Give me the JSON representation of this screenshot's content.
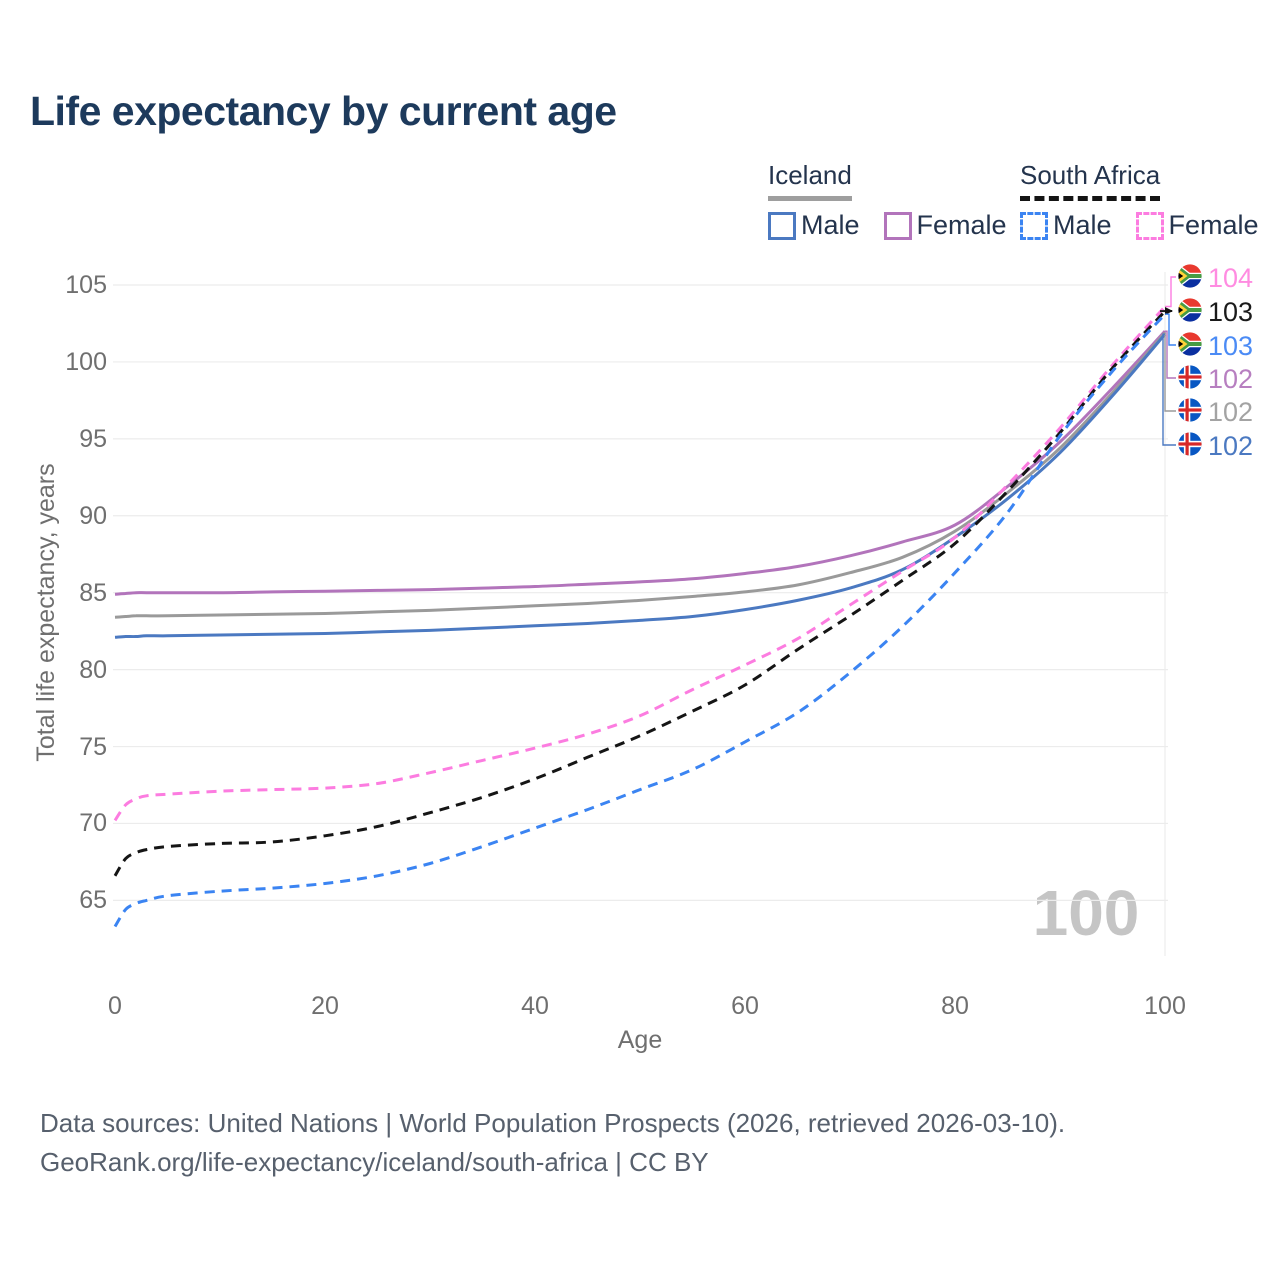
{
  "title": "Life expectancy by current age",
  "legend": {
    "groups": [
      {
        "name": "Iceland",
        "line_style": "solid",
        "underline_color": "#9e9e9e",
        "items": [
          {
            "label": "Male",
            "color": "#4b79c1",
            "dashed": false
          },
          {
            "label": "Female",
            "color": "#b274bb",
            "dashed": false
          }
        ]
      },
      {
        "name": "South Africa",
        "line_style": "dashed",
        "underline_color": "#141414",
        "items": [
          {
            "label": "Male",
            "color": "#3b84f2",
            "dashed": true
          },
          {
            "label": "Female",
            "color": "#fc7ce0",
            "dashed": true
          }
        ]
      }
    ]
  },
  "watermark": "100",
  "end_labels": [
    {
      "value": "104",
      "flag": "za",
      "color": "#ff8ce1",
      "series": "South Africa Female"
    },
    {
      "value": "103",
      "flag": "za",
      "color": "#1a1a1a",
      "series": "South Africa Both sexes"
    },
    {
      "value": "103",
      "flag": "za",
      "color": "#4b8bf5",
      "series": "South Africa Male"
    },
    {
      "value": "102",
      "flag": "is",
      "color": "#b77fc0",
      "series": "Iceland Female"
    },
    {
      "value": "102",
      "flag": "is",
      "color": "#a3a3a3",
      "series": "Iceland Both sexes"
    },
    {
      "value": "102",
      "flag": "is",
      "color": "#4b79c1",
      "series": "Iceland Male"
    }
  ],
  "footer": {
    "line1": "Data sources: United Nations | World Population Prospects (2026, retrieved 2026-03-10).",
    "line2": "GeoRank.org/life-expectancy/iceland/south-africa | CC BY"
  },
  "chart_data": {
    "type": "line",
    "title": "Life expectancy by current age",
    "xlabel": "Age",
    "ylabel": "Total life expectancy, years",
    "xlim": [
      0,
      100
    ],
    "ylim": [
      62,
      106
    ],
    "x_ticks": [
      0,
      20,
      40,
      60,
      80,
      100
    ],
    "y_ticks": [
      65,
      70,
      75,
      80,
      85,
      90,
      95,
      100,
      105
    ],
    "grid": "horizontal",
    "legend_position": "top-right",
    "x": [
      0,
      1,
      2,
      3,
      5,
      10,
      15,
      20,
      25,
      30,
      35,
      40,
      45,
      50,
      55,
      60,
      65,
      70,
      75,
      80,
      85,
      90,
      95,
      100
    ],
    "series": [
      {
        "name": "Iceland Female",
        "country": "Iceland",
        "sex": "Female",
        "color": "#b274bb",
        "dashed": false,
        "values": [
          84.9,
          84.95,
          85.0,
          85.0,
          85.0,
          85.0,
          85.05,
          85.1,
          85.15,
          85.2,
          85.3,
          85.4,
          85.55,
          85.7,
          85.9,
          86.25,
          86.7,
          87.4,
          88.3,
          89.4,
          91.9,
          94.8,
          98.3,
          102.0
        ],
        "end_value": 102
      },
      {
        "name": "Iceland Both sexes",
        "country": "Iceland",
        "sex": "Both sexes",
        "color": "#9a9a9a",
        "dashed": false,
        "values": [
          83.4,
          83.45,
          83.5,
          83.5,
          83.5,
          83.55,
          83.6,
          83.65,
          83.75,
          83.85,
          84.0,
          84.15,
          84.3,
          84.5,
          84.75,
          85.05,
          85.5,
          86.3,
          87.3,
          89.0,
          91.5,
          94.4,
          98.0,
          101.9
        ],
        "end_value": 102
      },
      {
        "name": "Iceland Male",
        "country": "Iceland",
        "sex": "Male",
        "color": "#4b79c1",
        "dashed": false,
        "values": [
          82.1,
          82.15,
          82.15,
          82.2,
          82.2,
          82.25,
          82.3,
          82.35,
          82.45,
          82.55,
          82.7,
          82.85,
          83.0,
          83.2,
          83.45,
          83.9,
          84.5,
          85.3,
          86.5,
          88.6,
          91.1,
          94.1,
          97.8,
          101.8
        ],
        "end_value": 102
      },
      {
        "name": "South Africa Female",
        "country": "South Africa",
        "sex": "Female",
        "color": "#fc7ce0",
        "dashed": true,
        "values": [
          70.2,
          71.2,
          71.6,
          71.8,
          71.9,
          72.1,
          72.2,
          72.3,
          72.6,
          73.3,
          74.1,
          74.9,
          75.8,
          77.0,
          78.7,
          80.3,
          82.0,
          84.2,
          86.4,
          88.6,
          92.0,
          95.7,
          99.8,
          103.6
        ],
        "end_value": 104
      },
      {
        "name": "South Africa Both sexes",
        "country": "South Africa",
        "sex": "Both sexes",
        "color": "#151515",
        "dashed": true,
        "values": [
          66.6,
          67.7,
          68.1,
          68.3,
          68.5,
          68.7,
          68.8,
          69.2,
          69.8,
          70.7,
          71.7,
          72.9,
          74.3,
          75.7,
          77.3,
          79.0,
          81.3,
          83.5,
          85.8,
          88.2,
          91.6,
          95.4,
          99.6,
          103.3
        ],
        "end_value": 103
      },
      {
        "name": "South Africa Male",
        "country": "South Africa",
        "sex": "Male",
        "color": "#3b84f2",
        "dashed": true,
        "values": [
          63.3,
          64.4,
          64.8,
          65.0,
          65.3,
          65.6,
          65.8,
          66.1,
          66.6,
          67.4,
          68.5,
          69.7,
          70.9,
          72.2,
          73.5,
          75.3,
          77.2,
          79.8,
          82.8,
          86.3,
          90.2,
          95.2,
          99.4,
          103.1
        ],
        "end_value": 103
      }
    ]
  }
}
